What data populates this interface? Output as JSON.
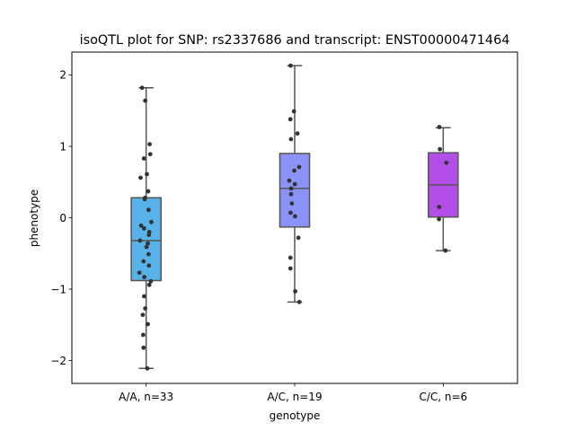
{
  "chart_data": {
    "type": "box",
    "title": "isoQTL plot for SNP: rs2337686 and transcript: ENST00000471464",
    "xlabel": "genotype",
    "ylabel": "phenotype",
    "ylim": [
      -2.32,
      2.32
    ],
    "yticks": [
      -2,
      -1,
      0,
      1,
      2
    ],
    "ytick_labels": [
      "−2",
      "−1",
      "0",
      "1",
      "2"
    ],
    "categories": [
      "A/A, n=33",
      "A/C, n=19",
      "C/C, n=6"
    ],
    "box_colors": [
      "#58b2ea",
      "#8c93f8",
      "#b34fe8"
    ],
    "edge_color": "#555555",
    "point_color": "#333333",
    "boxes": [
      {
        "whislo": -2.11,
        "q1": -0.88,
        "med": -0.32,
        "q3": 0.28,
        "whishi": 1.82
      },
      {
        "whislo": -1.18,
        "q1": -0.13,
        "med": 0.41,
        "q3": 0.9,
        "whishi": 2.13
      },
      {
        "whislo": -0.46,
        "q1": 0.01,
        "med": 0.46,
        "q3": 0.91,
        "whishi": 1.26
      }
    ],
    "points": [
      [
        [
          -0.22,
          1.82
        ],
        [
          -0.05,
          1.64
        ],
        [
          0.19,
          1.03
        ],
        [
          0.22,
          0.89
        ],
        [
          -0.12,
          0.83
        ],
        [
          0.04,
          0.61
        ],
        [
          -0.3,
          0.56
        ],
        [
          0.11,
          0.37
        ],
        [
          -0.06,
          0.28
        ],
        [
          -0.08,
          0.26
        ],
        [
          0.13,
          0.11
        ],
        [
          0.28,
          -0.06
        ],
        [
          -0.27,
          -0.11
        ],
        [
          -0.11,
          -0.15
        ],
        [
          0.17,
          -0.2
        ],
        [
          0.15,
          -0.24
        ],
        [
          -0.33,
          -0.32
        ],
        [
          0.09,
          -0.36
        ],
        [
          0.02,
          -0.41
        ],
        [
          0.13,
          -0.51
        ],
        [
          -0.14,
          -0.61
        ],
        [
          0.15,
          -0.67
        ],
        [
          -0.36,
          -0.77
        ],
        [
          -0.1,
          -0.83
        ],
        [
          0.17,
          -0.94
        ],
        [
          0.25,
          -0.89
        ],
        [
          -0.11,
          -1.1
        ],
        [
          -0.05,
          -1.27
        ],
        [
          -0.18,
          -1.36
        ],
        [
          0.09,
          -1.49
        ],
        [
          -0.16,
          -1.64
        ],
        [
          -0.14,
          -1.82
        ],
        [
          0.06,
          -2.11
        ]
      ],
      [
        [
          -0.22,
          2.13
        ],
        [
          -0.04,
          1.49
        ],
        [
          0.15,
          1.18
        ],
        [
          -0.23,
          1.38
        ],
        [
          -0.2,
          1.1
        ],
        [
          0.24,
          0.71
        ],
        [
          -0.02,
          0.66
        ],
        [
          -0.29,
          0.52
        ],
        [
          0.01,
          0.47
        ],
        [
          -0.19,
          0.41
        ],
        [
          -0.19,
          0.33
        ],
        [
          -0.15,
          0.2
        ],
        [
          -0.22,
          0.07
        ],
        [
          0.02,
          0.02
        ],
        [
          0.2,
          -0.28
        ],
        [
          -0.23,
          -0.56
        ],
        [
          -0.23,
          -0.71
        ],
        [
          0.03,
          -1.03
        ],
        [
          0.25,
          -1.18
        ]
      ],
      [
        [
          -0.21,
          1.27
        ],
        [
          -0.18,
          0.96
        ],
        [
          0.17,
          0.77
        ],
        [
          -0.22,
          0.15
        ],
        [
          -0.23,
          -0.02
        ],
        [
          0.12,
          -0.46
        ]
      ]
    ]
  }
}
